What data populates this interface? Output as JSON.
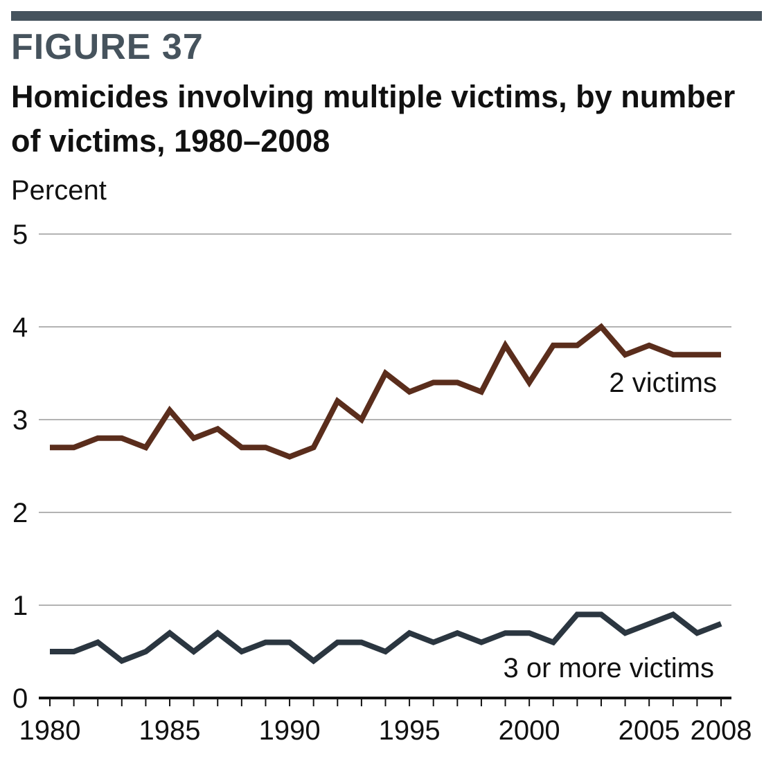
{
  "header": {
    "figure_label": "FIGURE 37",
    "rule_color": "#46535d"
  },
  "chart_data": {
    "type": "line",
    "title": "Homicides involving multiple victims, by number of victims, 1980–2008",
    "ylabel": "Percent",
    "xlabel": "",
    "ylim": [
      0,
      5
    ],
    "xlim": [
      1980,
      2008
    ],
    "yticks": [
      0,
      1,
      2,
      3,
      4,
      5
    ],
    "xticks": [
      "1980",
      "1985",
      "1990",
      "1995",
      "2000",
      "2005",
      "2008"
    ],
    "grid": true,
    "legend": "inline labels",
    "x": [
      1980,
      1981,
      1982,
      1983,
      1984,
      1985,
      1986,
      1987,
      1988,
      1989,
      1990,
      1991,
      1992,
      1993,
      1994,
      1995,
      1996,
      1997,
      1998,
      1999,
      2000,
      2001,
      2002,
      2003,
      2004,
      2005,
      2006,
      2007,
      2008
    ],
    "series": [
      {
        "name": "2 victims",
        "color": "#5a2d1c",
        "values": [
          2.7,
          2.7,
          2.8,
          2.8,
          2.7,
          3.1,
          2.8,
          2.9,
          2.7,
          2.7,
          2.6,
          2.7,
          3.2,
          3.0,
          3.5,
          3.3,
          3.4,
          3.4,
          3.3,
          3.8,
          3.4,
          3.8,
          3.8,
          4.0,
          3.7,
          3.8,
          3.7,
          3.7,
          3.7
        ]
      },
      {
        "name": "3 or more victims",
        "color": "#2b3640",
        "values": [
          0.5,
          0.5,
          0.6,
          0.4,
          0.5,
          0.7,
          0.5,
          0.7,
          0.5,
          0.6,
          0.6,
          0.4,
          0.6,
          0.6,
          0.5,
          0.7,
          0.6,
          0.7,
          0.6,
          0.7,
          0.7,
          0.6,
          0.9,
          0.9,
          0.7,
          0.8,
          0.9,
          0.7,
          0.8
        ]
      }
    ]
  }
}
